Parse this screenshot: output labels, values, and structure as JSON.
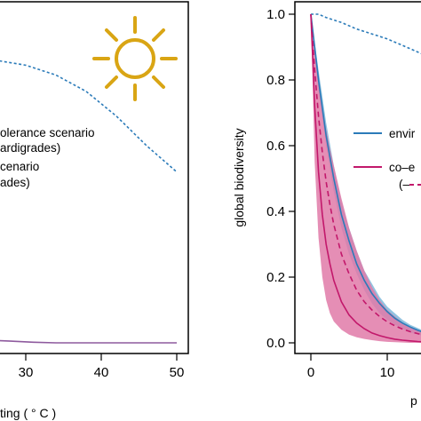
{
  "colors": {
    "blue": "#2b7bb9",
    "blue_band": "#7fb8db",
    "magenta": "#c2186b",
    "magenta_band": "#e07aa8",
    "purple": "#8e5a9e",
    "sun": "#d9a514"
  },
  "icons": {
    "sun": "sun-icon"
  },
  "chart_data": [
    {
      "type": "line",
      "title": "",
      "xlabel": "ting ( ° C )",
      "ylabel": "",
      "xlim": [
        22,
        52
      ],
      "ylim": [
        -0.03,
        1.03
      ],
      "xticks": [
        30,
        40,
        50
      ],
      "xtick_labels": [
        "30",
        "40",
        "50"
      ],
      "legend": [
        {
          "text": "olerance scenario"
        },
        {
          "text": "ardigrades)"
        },
        {
          "text": "cenario"
        },
        {
          "text": "ades)"
        }
      ],
      "series": [
        {
          "style": "dotted",
          "color": "blue",
          "x": [
            22,
            26,
            30,
            34,
            38,
            42,
            46,
            50
          ],
          "y": [
            0.865,
            0.86,
            0.845,
            0.815,
            0.765,
            0.69,
            0.6,
            0.52
          ]
        },
        {
          "style": "solid",
          "color": "purple",
          "x": [
            22,
            25,
            28,
            31,
            34,
            50
          ],
          "y": [
            0.008,
            0.008,
            0.005,
            0.002,
            0.0,
            0.0
          ]
        }
      ]
    },
    {
      "type": "line",
      "title": "",
      "xlabel": "p",
      "ylabel": "global biodiversity",
      "xlim": [
        -1,
        16
      ],
      "ylim": [
        -0.03,
        1.03
      ],
      "xticks": [
        0,
        10
      ],
      "xtick_labels": [
        "0",
        "10"
      ],
      "yticks": [
        0,
        0.2,
        0.4,
        0.6,
        0.8,
        1.0
      ],
      "ytick_labels": [
        "0.0",
        "0.2",
        "0.4",
        "0.6",
        "0.8",
        "1.0"
      ],
      "legend": [
        {
          "text": "envir"
        },
        {
          "text": "co–e"
        },
        {
          "text": "(–"
        }
      ],
      "series": [
        {
          "style": "dotted",
          "color": "blue",
          "x": [
            0,
            1,
            2,
            4,
            6,
            8,
            10,
            12,
            14,
            15
          ],
          "y": [
            1.0,
            1.0,
            0.99,
            0.975,
            0.955,
            0.94,
            0.925,
            0.905,
            0.885,
            0.875
          ]
        },
        {
          "style": "solid",
          "color": "blue",
          "band": "blue_band",
          "x": [
            0,
            1,
            2,
            3,
            4,
            5,
            6,
            7,
            8,
            9,
            10,
            11,
            12,
            13,
            14,
            15
          ],
          "y": [
            1.0,
            0.8,
            0.63,
            0.5,
            0.39,
            0.31,
            0.24,
            0.19,
            0.15,
            0.12,
            0.095,
            0.075,
            0.06,
            0.048,
            0.038,
            0.03
          ],
          "y_low": [
            1.0,
            0.77,
            0.6,
            0.46,
            0.35,
            0.27,
            0.21,
            0.16,
            0.12,
            0.09,
            0.07,
            0.055,
            0.042,
            0.032,
            0.025,
            0.02
          ],
          "y_high": [
            1.0,
            0.83,
            0.67,
            0.54,
            0.43,
            0.35,
            0.28,
            0.22,
            0.18,
            0.14,
            0.11,
            0.09,
            0.07,
            0.055,
            0.045,
            0.035
          ]
        },
        {
          "style": "dashed",
          "color": "magenta",
          "band": "magenta_band",
          "x": [
            0,
            0.5,
            1,
            1.5,
            2,
            2.5,
            3,
            4,
            5,
            6,
            7,
            8,
            9,
            10,
            11,
            12,
            13,
            14,
            15
          ],
          "y": [
            1.0,
            0.83,
            0.69,
            0.58,
            0.49,
            0.42,
            0.36,
            0.27,
            0.21,
            0.16,
            0.125,
            0.1,
            0.08,
            0.064,
            0.052,
            0.042,
            0.034,
            0.028,
            0.022
          ],
          "y_low": [
            1.0,
            0.55,
            0.32,
            0.2,
            0.13,
            0.09,
            0.065,
            0.04,
            0.025,
            0.017,
            0.012,
            0.008,
            0.005,
            0.003,
            0.002,
            0.001,
            0.0,
            0.0,
            0.0
          ],
          "y_high": [
            1.0,
            0.9,
            0.8,
            0.72,
            0.65,
            0.59,
            0.54,
            0.44,
            0.35,
            0.28,
            0.22,
            0.17,
            0.13,
            0.1,
            0.08,
            0.062,
            0.048,
            0.038,
            0.03
          ]
        },
        {
          "style": "solid",
          "color": "magenta",
          "x": [
            0,
            0.5,
            1,
            1.5,
            2,
            2.5,
            3,
            4,
            5,
            6,
            7,
            8,
            9,
            10,
            11,
            12,
            13,
            14,
            15
          ],
          "y": [
            1.0,
            0.72,
            0.52,
            0.39,
            0.3,
            0.24,
            0.19,
            0.125,
            0.085,
            0.06,
            0.043,
            0.03,
            0.022,
            0.016,
            0.011,
            0.008,
            0.006,
            0.004,
            0.003
          ]
        }
      ]
    }
  ]
}
